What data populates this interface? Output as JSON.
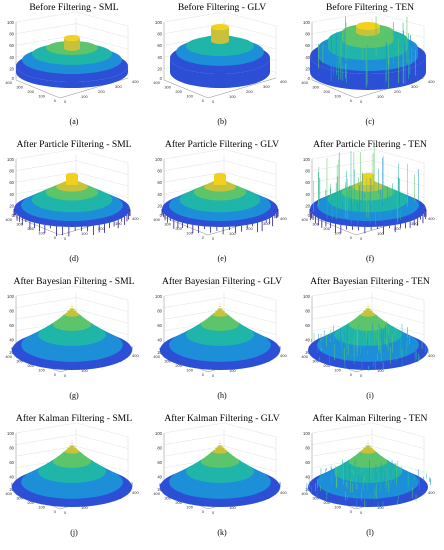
{
  "figure": {
    "panels": [
      {
        "title": "Before Filtering - SML",
        "caption": "(a)",
        "kind": "tiered",
        "metric": "SML",
        "stage": "before",
        "ylabels": [
          "100",
          "80",
          "60",
          "40",
          "20",
          "0"
        ],
        "xlabels": [
          "400",
          "300",
          "200",
          "100",
          "0"
        ],
        "zlabels": [
          "0",
          "100",
          "200",
          "300",
          "400"
        ]
      },
      {
        "title": "Before Filtering - GLV",
        "caption": "(b)",
        "kind": "tiered",
        "metric": "GLV",
        "stage": "before",
        "ylabels": [
          "100",
          "80",
          "60",
          "40",
          "20",
          "0"
        ],
        "xlabels": [
          "400",
          "300",
          "200",
          "100",
          "0"
        ],
        "zlabels": [
          "0",
          "100",
          "200",
          "300",
          "400"
        ]
      },
      {
        "title": "Before Filtering - TEN",
        "caption": "(c)",
        "kind": "tiered",
        "metric": "TEN",
        "stage": "before",
        "ylabels": [
          "100",
          "80",
          "60",
          "40",
          "20",
          "0"
        ],
        "xlabels": [
          "400",
          "300",
          "200",
          "100",
          "0"
        ],
        "zlabels": [
          "0",
          "100",
          "200",
          "300",
          "400"
        ]
      },
      {
        "title": "After Particle Filtering - SML",
        "caption": "(d)",
        "kind": "dome",
        "metric": "SML",
        "stage": "particle",
        "ylabels": [
          "100",
          "80",
          "60",
          "40",
          "20",
          "0"
        ],
        "xlabels": [
          "400",
          "300",
          "200",
          "100",
          "0"
        ],
        "zlabels": [
          "0",
          "100",
          "200",
          "300",
          "400"
        ]
      },
      {
        "title": "After Particle Filtering - GLV",
        "caption": "(e)",
        "kind": "dome",
        "metric": "GLV",
        "stage": "particle",
        "ylabels": [
          "100",
          "80",
          "60",
          "40",
          "20",
          "0"
        ],
        "xlabels": [
          "400",
          "300",
          "200",
          "100",
          "0"
        ],
        "zlabels": [
          "0",
          "100",
          "200",
          "300",
          "400"
        ]
      },
      {
        "title": "After Particle Filtering - TEN",
        "caption": "(f)",
        "kind": "dome",
        "metric": "TEN",
        "stage": "particle",
        "ylabels": [
          "100",
          "80",
          "60",
          "40",
          "20",
          "0"
        ],
        "xlabels": [
          "400",
          "300",
          "200",
          "100",
          "0"
        ],
        "zlabels": [
          "0",
          "100",
          "200",
          "300",
          "400"
        ]
      },
      {
        "title": "After Bayesian Filtering - SML",
        "caption": "(g)",
        "kind": "cone",
        "metric": "SML",
        "stage": "bayesian",
        "ylabels": [
          "100",
          "80",
          "60",
          "40",
          "20"
        ],
        "xlabels": [
          "400",
          "300",
          "200",
          "100",
          "0"
        ],
        "zlabels": [
          "0",
          "100",
          "200",
          "300",
          "400"
        ]
      },
      {
        "title": "After Bayesian Filtering - GLV",
        "caption": "(h)",
        "kind": "cone",
        "metric": "GLV",
        "stage": "bayesian",
        "ylabels": [
          "100",
          "80",
          "60",
          "40",
          "20"
        ],
        "xlabels": [
          "400",
          "300",
          "200",
          "100",
          "0"
        ],
        "zlabels": [
          "0",
          "100",
          "200",
          "300",
          "400"
        ]
      },
      {
        "title": "After Bayesian Filtering - TEN",
        "caption": "(i)",
        "kind": "cone",
        "metric": "TEN",
        "stage": "bayesian",
        "ylabels": [
          "100",
          "80",
          "60",
          "40",
          "20"
        ],
        "xlabels": [
          "400",
          "300",
          "200",
          "100",
          "0"
        ],
        "zlabels": [
          "0",
          "100",
          "200",
          "300",
          "400"
        ]
      },
      {
        "title": "After Kalman Filtering - SML",
        "caption": "(j)",
        "kind": "cone",
        "metric": "SML",
        "stage": "kalman",
        "ylabels": [
          "100",
          "80",
          "60",
          "40",
          "20"
        ],
        "xlabels": [
          "400",
          "300",
          "200",
          "100",
          "0"
        ],
        "zlabels": [
          "0",
          "100",
          "200",
          "300",
          "400"
        ]
      },
      {
        "title": "After Kalman Filtering - GLV",
        "caption": "(k)",
        "kind": "cone",
        "metric": "GLV",
        "stage": "kalman",
        "ylabels": [
          "100",
          "80",
          "60",
          "40",
          "20"
        ],
        "xlabels": [
          "400",
          "300",
          "200",
          "100",
          "0"
        ],
        "zlabels": [
          "0",
          "100",
          "200",
          "300",
          "400"
        ]
      },
      {
        "title": "After Kalman Filtering - TEN",
        "caption": "(l)",
        "kind": "cone",
        "metric": "TEN",
        "stage": "kalman",
        "ylabels": [
          "100",
          "80",
          "60",
          "40",
          "20"
        ],
        "xlabels": [
          "400",
          "300",
          "200",
          "100",
          "0"
        ],
        "zlabels": [
          "0",
          "100",
          "200",
          "300",
          "400"
        ]
      }
    ],
    "colormap": [
      "#2a1a8c",
      "#2c4fd6",
      "#1d8ed8",
      "#1fb5a8",
      "#5cc46a",
      "#c7c23a",
      "#f0d21e"
    ]
  }
}
